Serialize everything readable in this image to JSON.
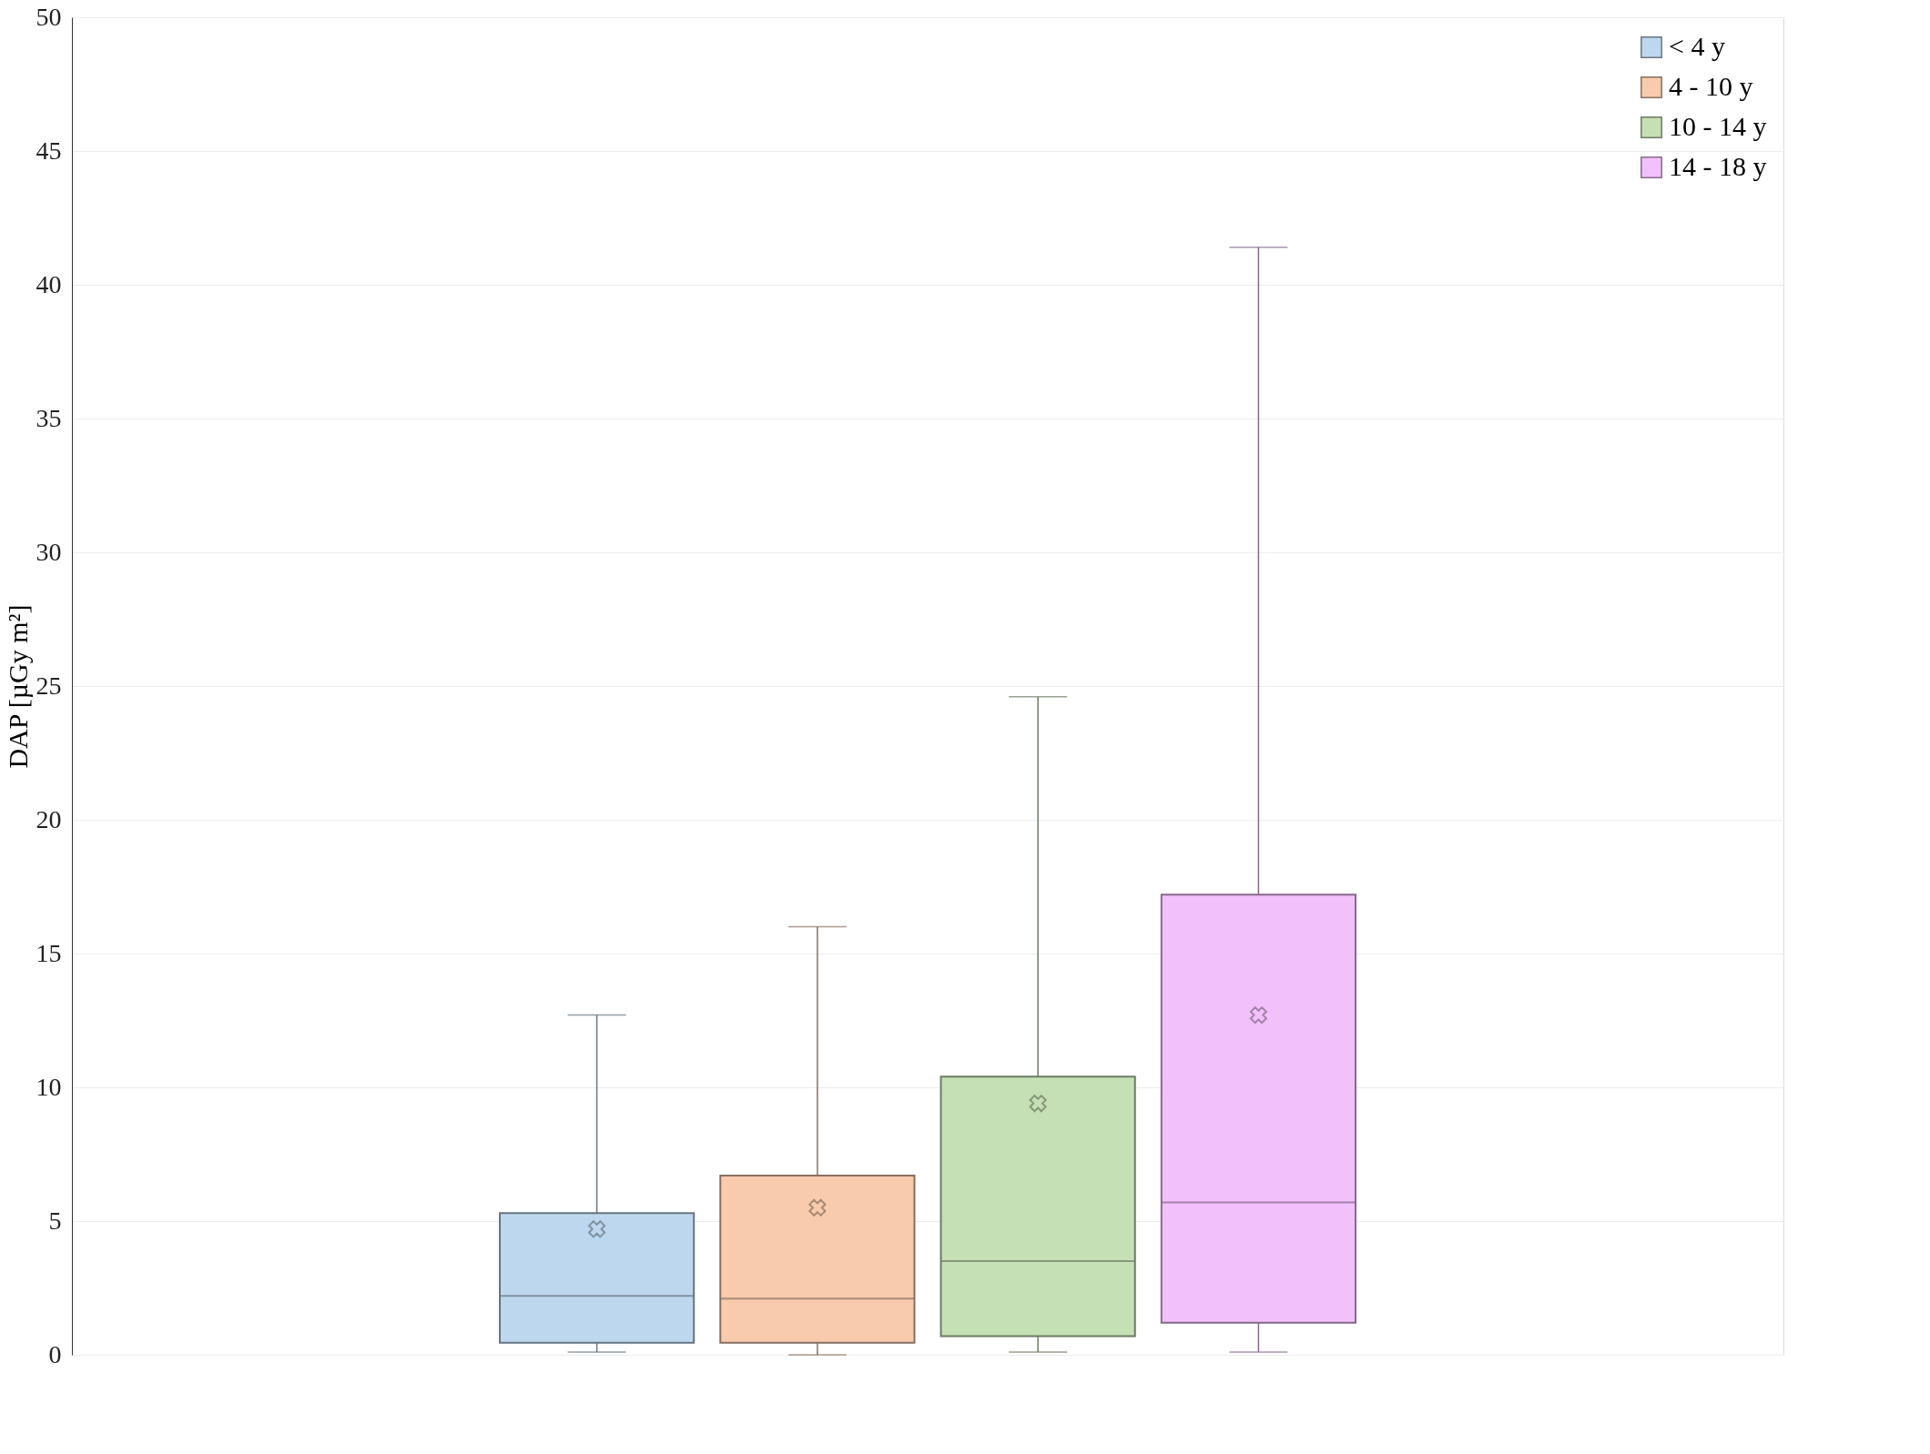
{
  "chart_data": {
    "type": "box",
    "ylabel": "DAP [µGy m²]",
    "categories": [
      null
    ],
    "series": [
      {
        "name": "< 4 y",
        "color": "#bdd7ee",
        "boxes": [
          {
            "low": 0.1,
            "q1": 0.45,
            "median": 2.2,
            "q3": 5.3,
            "high": 12.7,
            "mean": 4.7
          }
        ]
      },
      {
        "name": "4 - 10 y",
        "color": "#f8cbad",
        "boxes": [
          {
            "low": 0,
            "q1": 0.45,
            "median": 2.1,
            "q3": 6.7,
            "high": 16.0,
            "mean": 5.5
          }
        ]
      },
      {
        "name": "10 - 14 y",
        "color": "#c5e0b4",
        "boxes": [
          {
            "low": 0.1,
            "q1": 0.7,
            "median": 3.5,
            "q3": 10.4,
            "high": 24.6,
            "mean": 9.4
          }
        ]
      },
      {
        "name": "14 - 18 y",
        "color": "#f2c0fa",
        "boxes": [
          {
            "low": 0.1,
            "q1": 1.2,
            "median": 5.7,
            "q3": 17.2,
            "high": 41.4,
            "mean": 12.7
          }
        ]
      }
    ],
    "ylim": [
      0,
      50
    ],
    "yticks": [
      0,
      5,
      10,
      15,
      20,
      25,
      30,
      35,
      40,
      45,
      50
    ],
    "grid": "y",
    "legend": "top right",
    "marker": "cross"
  }
}
